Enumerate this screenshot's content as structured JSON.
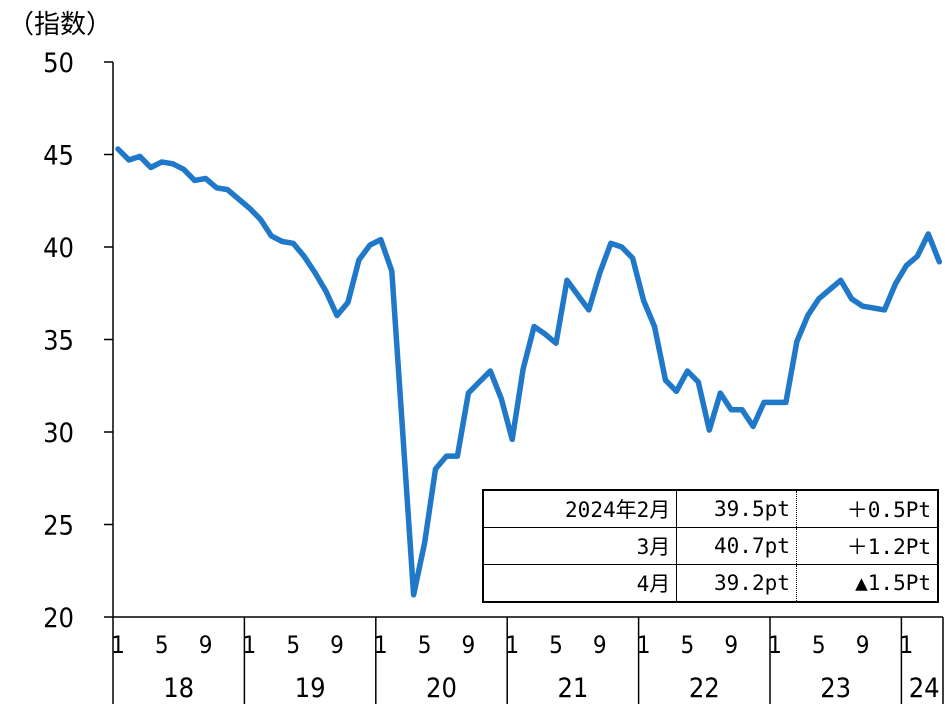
{
  "chart_data": {
    "type": "line",
    "ylabel": "（指数）",
    "ylim": [
      20,
      50
    ],
    "yticks": [
      "20",
      "25",
      "30",
      "35",
      "40",
      "45",
      "50"
    ],
    "grid": false,
    "color": "#1f78c8",
    "x_month_labels": [
      "1",
      "5",
      "9",
      "1",
      "5",
      "9",
      "1",
      "5",
      "9",
      "1",
      "5",
      "9",
      "1",
      "5",
      "9",
      "1",
      "5",
      "9",
      "1"
    ],
    "x_year_labels": [
      "18",
      "19",
      "20",
      "21",
      "22",
      "23",
      "24"
    ],
    "series": [
      {
        "values": [
          45.3,
          44.7,
          44.9,
          44.3,
          44.6,
          44.5,
          44.2,
          43.6,
          43.7,
          43.2,
          43.1,
          42.6,
          42.1,
          41.5,
          40.6,
          40.3,
          40.2,
          39.5,
          38.6,
          37.6,
          36.3,
          37.0,
          39.3,
          40.1,
          40.4,
          38.7,
          30.0,
          21.2,
          24.0,
          28.0,
          28.7,
          28.7,
          32.1,
          32.7,
          33.3,
          31.8,
          29.6,
          33.4,
          35.7,
          35.3,
          34.8,
          38.2,
          37.4,
          36.6,
          38.6,
          40.2,
          40.0,
          39.4,
          37.1,
          35.7,
          32.8,
          32.2,
          33.3,
          32.7,
          30.1,
          32.1,
          31.2,
          31.2,
          30.3,
          31.6,
          31.6,
          31.6,
          34.9,
          36.3,
          37.2,
          37.7,
          38.2,
          37.2,
          36.8,
          36.7,
          36.6,
          38.0,
          39.0,
          39.5,
          40.7,
          39.2
        ]
      }
    ]
  },
  "info_table": {
    "rows": [
      {
        "period": "2024年2月",
        "value": "39.5pt",
        "change": "＋0.5Pt"
      },
      {
        "period": "3月",
        "value": "40.7pt",
        "change": "＋1.2Pt"
      },
      {
        "period": "4月",
        "value": "39.2pt",
        "change": "▲1.5Pt"
      }
    ]
  }
}
